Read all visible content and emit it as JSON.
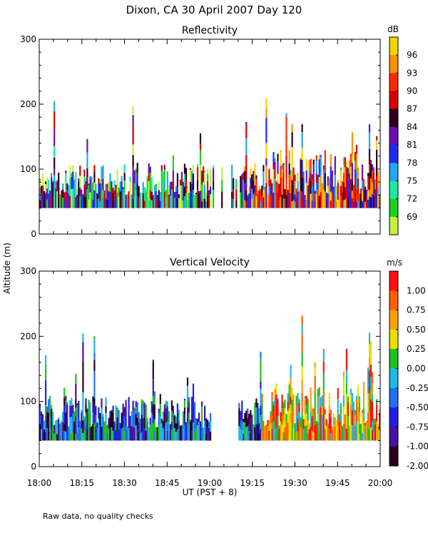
{
  "title": "Dixon, CA 30 April 2007  Day 120",
  "y_axis_label": "Altitude (m)",
  "x_axis_label": "UT  (PST + 8)",
  "x_tick_labels": [
    "18:00",
    "18:15",
    "18:30",
    "18:45",
    "19:00",
    "19:15",
    "19:30",
    "19:45",
    "20:00"
  ],
  "y_tick_labels": [
    "0",
    "100",
    "200",
    "300"
  ],
  "footnote": "Raw data, no quality checks",
  "chart_data": [
    {
      "type": "heatmap",
      "title": "Reflectivity",
      "colorbar_unit": "dB",
      "colorbar_labels": [
        "96",
        "93",
        "90",
        "87",
        "84",
        "81",
        "78",
        "75",
        "72",
        "69"
      ],
      "colorbar_colors": [
        "#f5d400",
        "#ff9000",
        "#ff2a00",
        "#d80000",
        "#2a0020",
        "#6a10b0",
        "#1f2af0",
        "#20a8f0",
        "#20e8a0",
        "#20d020",
        "#c0f040"
      ],
      "x_range_hours": [
        18.0,
        20.0
      ],
      "ylim": [
        0,
        300
      ],
      "echo_floor_m": 40
    },
    {
      "type": "heatmap",
      "title": "Vertical Velocity",
      "colorbar_unit": "m/s",
      "colorbar_labels": [
        "1.00",
        "0.75",
        "0.50",
        "0.25",
        "0.00",
        "-0.25",
        "-0.50",
        "-0.75",
        "-1.00",
        "-2.00"
      ],
      "colorbar_colors": [
        "#ff1010",
        "#ff6000",
        "#ffa000",
        "#e8e000",
        "#20c020",
        "#20b8e0",
        "#2070f0",
        "#2020e0",
        "#4a10a0",
        "#2a0018"
      ],
      "x_range_hours": [
        18.0,
        20.0
      ],
      "ylim": [
        0,
        300
      ],
      "echo_floor_m": 40
    }
  ]
}
